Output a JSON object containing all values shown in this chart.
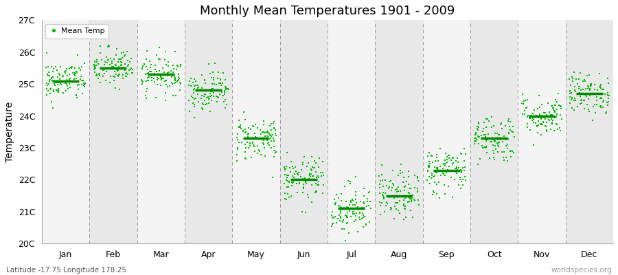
{
  "title": "Monthly Mean Temperatures 1901 - 2009",
  "ylabel": "Temperature",
  "subtitle": "Latitude -17.75 Longitude 178.25",
  "watermark": "worldspecies.org",
  "months": [
    "Jan",
    "Feb",
    "Mar",
    "Apr",
    "May",
    "Jun",
    "Jul",
    "Aug",
    "Sep",
    "Oct",
    "Nov",
    "Dec"
  ],
  "monthly_means": [
    25.1,
    25.5,
    25.3,
    24.8,
    23.3,
    22.0,
    21.1,
    21.5,
    22.3,
    23.3,
    24.0,
    24.7
  ],
  "monthly_std": [
    0.32,
    0.32,
    0.3,
    0.32,
    0.35,
    0.35,
    0.4,
    0.38,
    0.38,
    0.38,
    0.32,
    0.32
  ],
  "ylim_min": 20,
  "ylim_max": 27,
  "yticks": [
    20,
    21,
    22,
    23,
    24,
    25,
    26,
    27
  ],
  "ytick_labels": [
    "20C",
    "21C",
    "22C",
    "23C",
    "24C",
    "25C",
    "26C",
    "27C"
  ],
  "n_years": 109,
  "dot_color": "#00BB00",
  "mean_line_color": "#008800",
  "bg_color_even": "#f4f4f4",
  "bg_color_odd": "#e8e8e8",
  "legend_label": "Mean Temp",
  "figsize": [
    9.0,
    4.0
  ],
  "dpi": 100
}
